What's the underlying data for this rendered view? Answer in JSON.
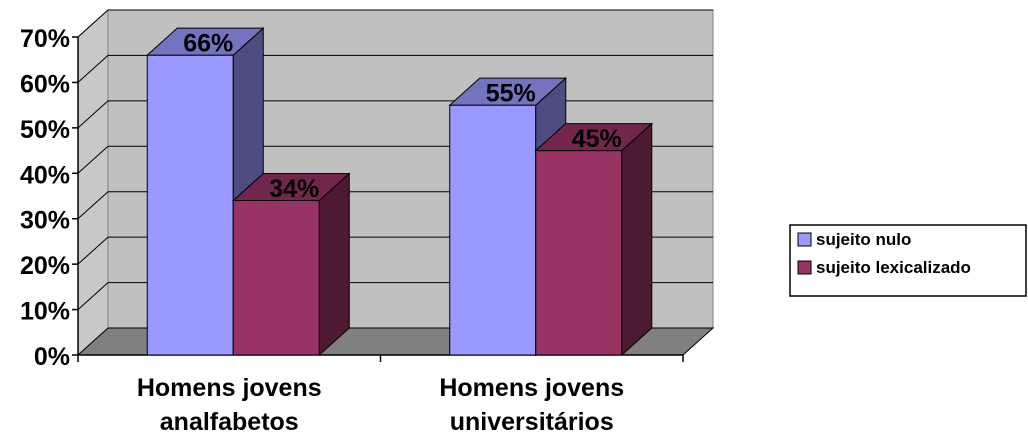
{
  "chart_data": {
    "type": "bar",
    "style": "3d-clustered-column",
    "categories": [
      [
        "Homens jovens",
        "analfabetos"
      ],
      [
        "Homens jovens",
        "universitários"
      ]
    ],
    "series": [
      {
        "name": "sujeito nulo",
        "values": [
          66,
          55
        ],
        "labels": [
          "66%",
          "55%"
        ]
      },
      {
        "name": "sujeito lexicalizado",
        "values": [
          34,
          45
        ],
        "labels": [
          "34%",
          "45%"
        ]
      }
    ],
    "yticks": [
      "0%",
      "10%",
      "20%",
      "30%",
      "40%",
      "50%",
      "60%",
      "70%"
    ],
    "ylim": [
      0,
      70
    ],
    "grid": true,
    "legend_position": "right",
    "colors": {
      "series": [
        "#9999ff",
        "#993366"
      ],
      "series_side": [
        "#4d4d80",
        "#4d1933"
      ],
      "series_top": [
        "#7373c0",
        "#73264d"
      ],
      "wall": "#c0c0c0",
      "side_wall": "#c8c8c8",
      "floor": "#808080",
      "gridline": "#000000"
    }
  }
}
